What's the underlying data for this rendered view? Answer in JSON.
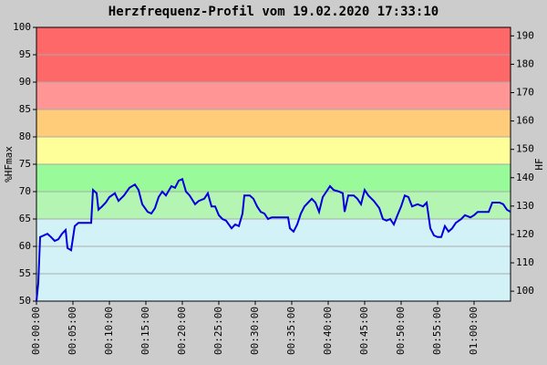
{
  "chart_data": {
    "type": "line",
    "title": "Herzfrequenz-Profil vom 19.02.2020 17:33:10",
    "y_label": "%HFmax",
    "y2_label": "HF",
    "xlim": [
      0,
      65
    ],
    "ylim": [
      50,
      100
    ],
    "y2lim": [
      96.5,
      193
    ],
    "yticks": [
      50,
      55,
      60,
      65,
      70,
      75,
      80,
      85,
      90,
      95,
      100
    ],
    "y2ticks": [
      100,
      110,
      120,
      130,
      140,
      150,
      160,
      170,
      180,
      190
    ],
    "xticks": [
      {
        "value": 0,
        "label": "00:00:00"
      },
      {
        "value": 5,
        "label": "00:05:00"
      },
      {
        "value": 10,
        "label": "00:10:00"
      },
      {
        "value": 15,
        "label": "00:15:00"
      },
      {
        "value": 20,
        "label": "00:20:00"
      },
      {
        "value": 25,
        "label": "00:25:00"
      },
      {
        "value": 30,
        "label": "00:30:00"
      },
      {
        "value": 35,
        "label": "00:35:00"
      },
      {
        "value": 40,
        "label": "00:40:00"
      },
      {
        "value": 45,
        "label": "00:45:00"
      },
      {
        "value": 50,
        "label": "00:50:00"
      },
      {
        "value": 55,
        "label": "00:55:00"
      },
      {
        "value": 60,
        "label": "01:00:00"
      }
    ],
    "grid": true,
    "bands": [
      {
        "from": 50,
        "to": 65,
        "color": "#d2f2f8"
      },
      {
        "from": 65,
        "to": 70,
        "color": "#b4f5b4"
      },
      {
        "from": 70,
        "to": 75,
        "color": "#99fa99"
      },
      {
        "from": 75,
        "to": 80,
        "color": "#ffff99"
      },
      {
        "from": 80,
        "to": 85,
        "color": "#ffcc7a"
      },
      {
        "from": 85,
        "to": 90,
        "color": "#ff9595"
      },
      {
        "from": 90,
        "to": 100,
        "color": "#ff6868"
      }
    ],
    "series": [
      {
        "color": "#0000dd",
        "x": [
          0,
          0.25,
          0.5,
          1,
          1.5,
          2,
          2.5,
          3,
          3.5,
          4,
          4.25,
          4.75,
          5.25,
          5.75,
          6.25,
          7.5,
          7.75,
          8.25,
          8.5,
          9,
          9.5,
          10,
          10.75,
          11.25,
          12,
          12.75,
          13.5,
          14,
          14.5,
          15.25,
          15.75,
          16.25,
          16.75,
          17.25,
          17.75,
          18.5,
          19,
          19.5,
          20,
          20.5,
          21,
          21.75,
          22.25,
          23,
          23.5,
          24,
          24.5,
          25,
          25.5,
          26,
          26.75,
          27.25,
          27.75,
          28.25,
          28.5,
          29.25,
          29.75,
          30.25,
          30.75,
          31.25,
          31.75,
          32.25,
          33.75,
          34.5,
          34.75,
          35.25,
          35.75,
          36.25,
          36.75,
          37.25,
          37.75,
          38.25,
          38.75,
          39.25,
          39.75,
          40.25,
          40.75,
          41.5,
          42,
          42.25,
          42.75,
          43.5,
          44,
          44.5,
          45,
          45.5,
          46.25,
          47,
          47.5,
          48,
          48.5,
          49,
          49.5,
          50,
          50.5,
          51,
          51.5,
          52.25,
          53,
          53.5,
          54,
          54.5,
          55,
          55.5,
          56,
          56.5,
          57,
          57.5,
          58.25,
          58.75,
          59.5,
          60,
          60.5,
          61.25,
          62,
          62.5,
          63.5,
          64,
          64.5,
          65
        ],
        "values": [
          50,
          53.3,
          61.7,
          62,
          62.3,
          61.7,
          61,
          61.3,
          62.3,
          63,
          59.7,
          59.3,
          63.7,
          64.3,
          64.3,
          64.3,
          70.3,
          69.7,
          66.7,
          67.3,
          68,
          69,
          69.7,
          68.3,
          69.3,
          70.7,
          71.3,
          70.3,
          67.7,
          66.3,
          66,
          67,
          69,
          70,
          69.3,
          71,
          70.7,
          72,
          72.3,
          70,
          69.3,
          67.7,
          68.3,
          68.7,
          69.7,
          67.3,
          67.3,
          65.7,
          65,
          64.7,
          63.3,
          64,
          63.7,
          66,
          69.3,
          69.3,
          68.7,
          67.3,
          66.3,
          66,
          65,
          65.3,
          65.3,
          65.3,
          63.3,
          62.7,
          64,
          66,
          67.3,
          68,
          68.7,
          68,
          66.3,
          69,
          70,
          71,
          70.3,
          70,
          69.7,
          66.3,
          69.3,
          69.3,
          68.7,
          67.7,
          70.3,
          69.3,
          68.3,
          67,
          65,
          64.7,
          65,
          64,
          65.7,
          67.3,
          69.3,
          69,
          67.3,
          67.7,
          67.3,
          68,
          63.3,
          62,
          61.7,
          61.7,
          63.7,
          62.7,
          63.3,
          64.3,
          65,
          65.7,
          65.3,
          65.7,
          66.3,
          66.3,
          66.3,
          68,
          68,
          67.7,
          66.7,
          66.3
        ]
      }
    ]
  }
}
